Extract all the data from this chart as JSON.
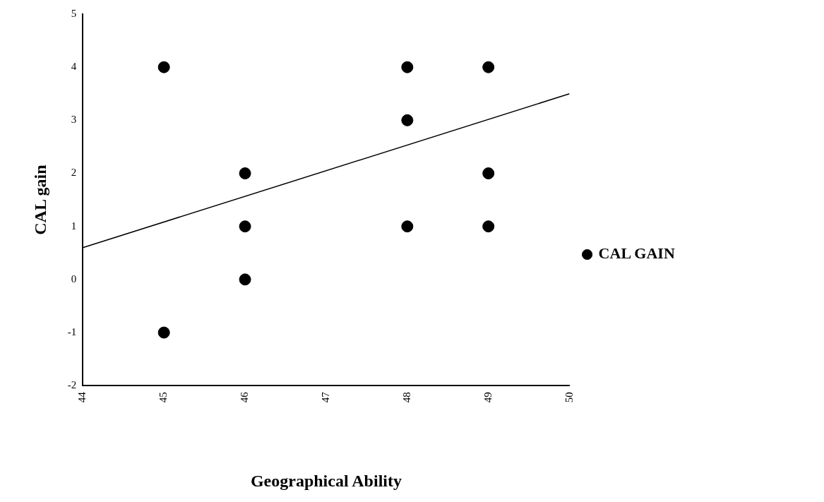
{
  "chart_data": {
    "type": "scatter",
    "xlabel": "Geographical Ability",
    "ylabel": "CAL gain",
    "xlim": [
      44,
      50
    ],
    "xticks": [
      44,
      45,
      46,
      47,
      48,
      49,
      50
    ],
    "ylim": [
      -2,
      5
    ],
    "yticks": [
      -2,
      -1,
      0,
      1,
      2,
      3,
      4,
      5
    ],
    "legend": "right",
    "series": [
      {
        "marker": "circle",
        "name": "CAL GAIN",
        "color": "#000000",
        "x": [
          45,
          45,
          46,
          46,
          46,
          48,
          48,
          48,
          49,
          49,
          49
        ],
        "values": [
          4,
          -1,
          2,
          1,
          0,
          4,
          3,
          1,
          4,
          2,
          1
        ]
      },
      {
        "type": "line",
        "marker": "none",
        "color": "#000000",
        "x": [
          44,
          50
        ],
        "values": [
          0.6,
          3.5
        ]
      }
    ]
  }
}
